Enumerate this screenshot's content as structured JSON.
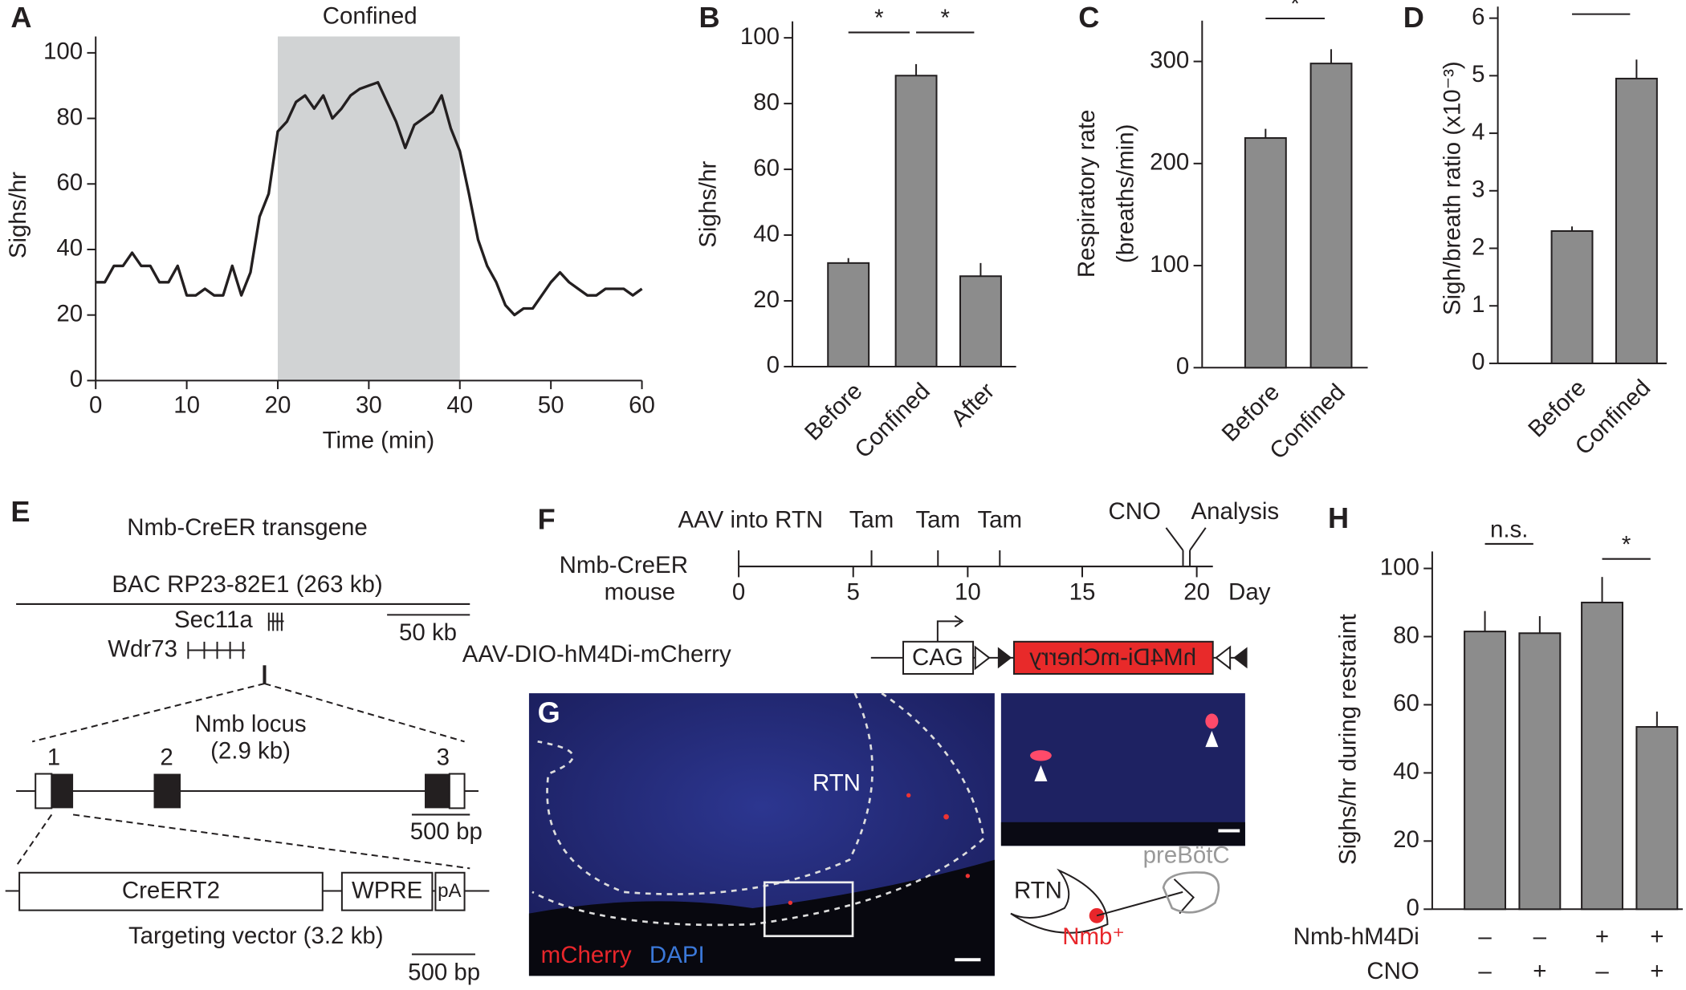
{
  "chart_data": [
    {
      "panel": "A",
      "type": "line",
      "xlabel": "Time (min)",
      "ylabel": "Sighs/hr",
      "x": [
        0,
        1,
        2,
        3,
        4,
        5,
        6,
        7,
        8,
        9,
        10,
        11,
        12,
        13,
        14,
        15,
        16,
        17,
        18,
        19,
        20,
        21,
        22,
        23,
        24,
        25,
        26,
        27,
        28,
        29,
        30,
        31,
        32,
        33,
        34,
        35,
        36,
        37,
        38,
        39,
        40,
        41,
        42,
        43,
        44,
        45,
        46,
        47,
        48,
        49,
        50,
        51,
        52,
        53,
        54,
        55,
        56,
        57,
        58,
        59,
        60
      ],
      "values": [
        30,
        30,
        35,
        35,
        39,
        35,
        35,
        30,
        30,
        35,
        26,
        26,
        28,
        26,
        26,
        35,
        26,
        33,
        50,
        57,
        76,
        79,
        85,
        87,
        83,
        87,
        80,
        83,
        87,
        89,
        90,
        91,
        85,
        79,
        71,
        78,
        80,
        82,
        87,
        77,
        70,
        57,
        43,
        35,
        30,
        23,
        20,
        22,
        22,
        26,
        30,
        33,
        30,
        28,
        26,
        26,
        28,
        28,
        28,
        26,
        28
      ],
      "color": "#231f20",
      "xlim": [
        0,
        60
      ],
      "ylim": [
        0,
        105
      ],
      "xticks": [
        0,
        10,
        20,
        30,
        40,
        50,
        60
      ],
      "yticks": [
        0,
        20,
        40,
        60,
        80,
        100
      ],
      "shaded_region": {
        "start": 20,
        "end": 40,
        "label": "Confined",
        "color": "#d1d3d4"
      }
    },
    {
      "panel": "B",
      "type": "bar",
      "ylabel": "Sighs/hr",
      "categories": [
        "Before",
        "Confined",
        "After"
      ],
      "values": [
        31.5,
        88.5,
        27.5
      ],
      "errors": [
        1.5,
        3.5,
        4
      ],
      "color": "#8c8c8c",
      "ylim": [
        0,
        105
      ],
      "yticks": [
        0,
        20,
        40,
        60,
        80,
        100
      ],
      "significance": [
        {
          "pair": [
            0,
            1
          ],
          "label": "*"
        },
        {
          "pair": [
            1,
            2
          ],
          "label": "*"
        }
      ]
    },
    {
      "panel": "C",
      "type": "bar",
      "ylabel": [
        "Respiratory rate",
        "(breaths/min)"
      ],
      "categories": [
        "Before",
        "Confined"
      ],
      "values": [
        225,
        298
      ],
      "errors": [
        9,
        14
      ],
      "color": "#8c8c8c",
      "ylim": [
        0,
        340
      ],
      "yticks": [
        0,
        100,
        200,
        300
      ],
      "significance": [
        {
          "pair": [
            0,
            1
          ],
          "label": "*"
        }
      ]
    },
    {
      "panel": "D",
      "type": "bar",
      "ylabel": "Sigh/breath ratio (x10⁻³)",
      "categories": [
        "Before",
        "Confined"
      ],
      "values": [
        2.3,
        4.95
      ],
      "errors": [
        0.08,
        0.33
      ],
      "color": "#8c8c8c",
      "ylim": [
        0,
        6.2
      ],
      "yticks": [
        0,
        1,
        2,
        3,
        4,
        5,
        6
      ],
      "significance": [
        {
          "pair": [
            0,
            1
          ],
          "label": "*"
        }
      ]
    },
    {
      "panel": "H",
      "type": "bar",
      "ylabel": "Sighs/hr during restraint",
      "categories": [
        null,
        null,
        null,
        null
      ],
      "values": [
        81.5,
        81,
        90,
        53.5
      ],
      "errors": [
        6,
        5,
        7.5,
        4.5
      ],
      "color": "#8c8c8c",
      "ylim": [
        0,
        105
      ],
      "yticks": [
        0,
        20,
        40,
        60,
        80,
        100
      ],
      "significance": [
        {
          "pair": [
            0,
            1
          ],
          "label": "n.s."
        },
        {
          "pair": [
            2,
            3
          ],
          "label": "*"
        }
      ],
      "conditions": [
        {
          "name": "Nmb-hM4Di",
          "values": [
            "–",
            "–",
            "+",
            "+"
          ]
        },
        {
          "name": "CNO",
          "values": [
            "–",
            "+",
            "–",
            "+"
          ]
        }
      ]
    }
  ],
  "panel_e": {
    "label": "E",
    "title": "Nmb-CreER transgene",
    "bac": "BAC RP23-82E1 (263 kb)",
    "genes": [
      "Sec11a",
      "Wdr73"
    ],
    "scale_bars": [
      "50 kb",
      "500 bp",
      "500 bp"
    ],
    "locus": [
      "Nmb locus",
      "(2.9 kb)"
    ],
    "exons": [
      "1",
      "2",
      "3"
    ],
    "vector": {
      "elements": [
        "CreERT2",
        "WPRE",
        "pA"
      ],
      "label": "Targeting vector (3.2 kb)"
    }
  },
  "panel_f": {
    "label": "F",
    "mouse": [
      "Nmb-CreER",
      "mouse"
    ],
    "events": [
      {
        "label": "AAV into RTN",
        "day": 0
      },
      {
        "label": "Tam",
        "day": 5.8
      },
      {
        "label": "Tam",
        "day": 8.7
      },
      {
        "label": "Tam",
        "day": 11.4
      },
      {
        "label": "CNO",
        "day": 19.4
      },
      {
        "label": "Analysis",
        "day": 19.7
      }
    ],
    "days": [
      0,
      5,
      10,
      15,
      20
    ],
    "unit": "Day",
    "construct": {
      "name": "AAV-DIO-hM4Di-mCherry",
      "promoter": "CAG",
      "insert": "hM4Di-mCherry"
    }
  },
  "panel_g": {
    "label": "G",
    "region": "RTN",
    "stains": [
      "mCherry",
      "DAPI"
    ],
    "schematic": {
      "region": "RTN",
      "target": "preBötC",
      "cells": "Nmb⁺"
    }
  }
}
